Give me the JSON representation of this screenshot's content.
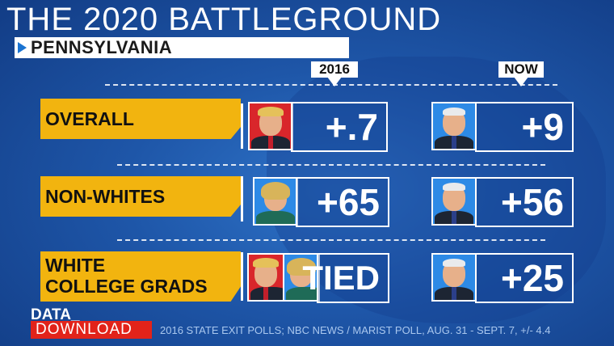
{
  "title": "THE 2020 BATTLEGROUND",
  "subtitle": "PENNSYLVANIA",
  "columns": {
    "left": "2016",
    "right": "NOW"
  },
  "rows": [
    {
      "label_lines": [
        "OVERALL"
      ],
      "left_value": "+.7",
      "right_value": "+9",
      "left_portraits": [
        "trump"
      ],
      "right_portraits": [
        "biden"
      ]
    },
    {
      "label_lines": [
        "NON-WHITES"
      ],
      "left_value": "+65",
      "right_value": "+56",
      "left_portraits": [
        "hillary"
      ],
      "right_portraits": [
        "biden"
      ]
    },
    {
      "label_lines": [
        "WHITE",
        "COLLEGE GRADS"
      ],
      "left_value": "TIED",
      "right_value": "+25",
      "left_portraits": [
        "trump",
        "hillary"
      ],
      "right_portraits": [
        "biden"
      ]
    }
  ],
  "footer": {
    "brand_line1": "DATA_",
    "brand_line2": "DOWNLOAD",
    "source": "2016 STATE EXIT POLLS; NBC NEWS / MARIST POLL, AUG. 31 - SEPT. 7, +/- 4.4"
  },
  "colors": {
    "accent_yellow": "#f2b40f",
    "brand_red": "#e2231a",
    "republican_red": "#d9262b",
    "democrat_blue": "#2d8ae6"
  }
}
